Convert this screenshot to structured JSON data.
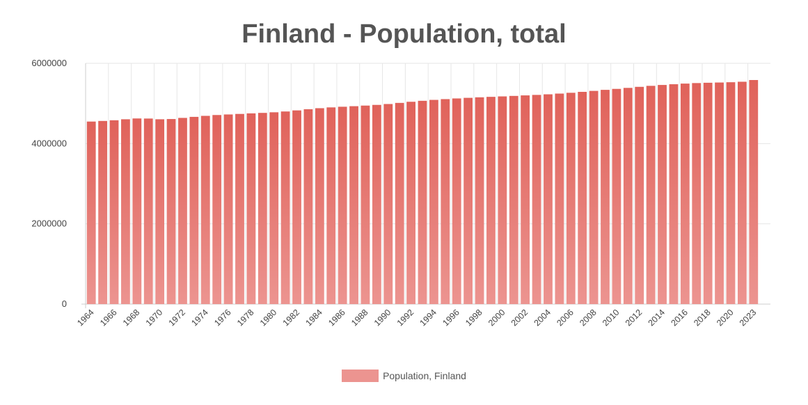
{
  "chart_data": {
    "type": "bar",
    "title": "Finland - Population, total",
    "xlabel": "",
    "ylabel": "",
    "ylim": [
      0,
      6000000
    ],
    "yticks": [
      "0",
      "2000000",
      "4000000",
      "6000000"
    ],
    "grid": true,
    "legend_position": "bottom",
    "colors": {
      "bar_top": "#e0625a",
      "bar_bottom": "#ec9490",
      "grid": "#e6e6e6",
      "axis": "#cccccc"
    },
    "categories": [
      "1964",
      "1965",
      "1966",
      "1967",
      "1968",
      "1969",
      "1970",
      "1971",
      "1972",
      "1973",
      "1974",
      "1975",
      "1976",
      "1977",
      "1978",
      "1979",
      "1980",
      "1981",
      "1982",
      "1983",
      "1984",
      "1985",
      "1986",
      "1987",
      "1988",
      "1989",
      "1990",
      "1991",
      "1992",
      "1993",
      "1994",
      "1995",
      "1996",
      "1997",
      "1998",
      "1999",
      "2000",
      "2001",
      "2002",
      "2003",
      "2004",
      "2005",
      "2006",
      "2007",
      "2008",
      "2009",
      "2010",
      "2011",
      "2012",
      "2013",
      "2014",
      "2015",
      "2016",
      "2017",
      "2018",
      "2019",
      "2020",
      "2021",
      "2023"
    ],
    "x_tick_labels": [
      "1964",
      "1966",
      "1968",
      "1970",
      "1972",
      "1974",
      "1976",
      "1978",
      "1980",
      "1982",
      "1984",
      "1986",
      "1988",
      "1990",
      "1992",
      "1994",
      "1996",
      "1998",
      "2000",
      "2002",
      "2004",
      "2006",
      "2008",
      "2010",
      "2012",
      "2014",
      "2016",
      "2018",
      "2020",
      "2023"
    ],
    "series": [
      {
        "name": "Population, Finland",
        "values": [
          4549000,
          4564000,
          4581000,
          4606000,
          4626000,
          4624000,
          4606000,
          4612000,
          4640000,
          4666000,
          4691000,
          4712000,
          4726000,
          4739000,
          4753000,
          4765000,
          4780000,
          4800000,
          4827000,
          4856000,
          4882000,
          4902000,
          4918000,
          4932000,
          4947000,
          4964000,
          4986000,
          5014000,
          5042000,
          5066000,
          5089000,
          5108000,
          5125000,
          5140000,
          5153000,
          5165000,
          5176000,
          5188000,
          5201000,
          5213000,
          5228000,
          5246000,
          5266000,
          5289000,
          5313000,
          5339000,
          5363000,
          5388000,
          5414000,
          5439000,
          5461000,
          5479000,
          5495000,
          5508000,
          5516000,
          5522000,
          5529000,
          5541000,
          5584000
        ]
      }
    ]
  }
}
